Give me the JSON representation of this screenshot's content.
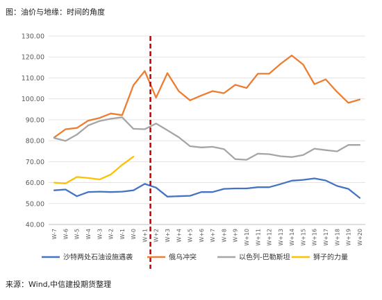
{
  "title": "图：油价与地缘：时间的角度",
  "source": "来源：Wind,中信建投期货整理",
  "chart_data": {
    "type": "line",
    "ylim": [
      40,
      130
    ],
    "yticks": [
      "40.00",
      "50.00",
      "60.00",
      "70.00",
      "80.00",
      "90.00",
      "100.00",
      "110.00",
      "120.00",
      "130.00"
    ],
    "x": [
      "W-7",
      "W-6",
      "W-5",
      "W-4",
      "W-3",
      "W-2",
      "W-1",
      "W-0",
      "W+1",
      "W+2",
      "W+3",
      "W+4",
      "W+5",
      "W+6",
      "W+7",
      "W+8",
      "W+9",
      "W+10",
      "W+11",
      "W+12",
      "W+13",
      "W+14",
      "W+15",
      "W+16",
      "W+17",
      "W+18",
      "W+19",
      "W+20"
    ],
    "event_marker_after": "W+1",
    "event_marker_color": "#C00000",
    "legend_position": "bottom",
    "series": [
      {
        "name": "沙特两处石油设施遇袭",
        "color": "#4472C4",
        "values": [
          56.3,
          56.7,
          53.5,
          55.5,
          55.7,
          55.5,
          55.7,
          56.3,
          59.4,
          57.6,
          53.3,
          53.5,
          53.7,
          55.5,
          55.5,
          57.0,
          57.2,
          57.2,
          57.8,
          57.8,
          59.3,
          60.9,
          61.3,
          62.0,
          61.0,
          58.4,
          57.0,
          52.7
        ]
      },
      {
        "name": "俄乌冲突",
        "color": "#ED7D31",
        "values": [
          81.6,
          85.5,
          86.1,
          89.6,
          90.9,
          93.0,
          92.2,
          106.5,
          113.3,
          100.6,
          112.3,
          103.7,
          99.3,
          101.6,
          103.7,
          102.7,
          106.7,
          105.2,
          112.0,
          112.0,
          116.7,
          120.7,
          116.4,
          107.0,
          109.3,
          103.3,
          98.1,
          99.7
        ]
      },
      {
        "name": "以色列-巴勒斯坦",
        "color": "#A5A5A5",
        "values": [
          81.3,
          79.9,
          82.9,
          87.3,
          89.4,
          90.5,
          91.2,
          85.7,
          85.5,
          88.2,
          85.0,
          81.7,
          77.4,
          76.8,
          77.1,
          76.0,
          71.2,
          70.9,
          73.8,
          73.6,
          72.6,
          72.2,
          73.2,
          76.2,
          75.5,
          74.9,
          78.0,
          78.0
        ]
      },
      {
        "name": "狮子的力量",
        "color": "#FFC000",
        "values": [
          60.0,
          59.6,
          62.7,
          62.2,
          61.5,
          63.9,
          68.5,
          72.4,
          null,
          null,
          null,
          null,
          null,
          null,
          null,
          null,
          null,
          null,
          null,
          null,
          null,
          null,
          null,
          null,
          null,
          null,
          null,
          null
        ]
      }
    ]
  }
}
